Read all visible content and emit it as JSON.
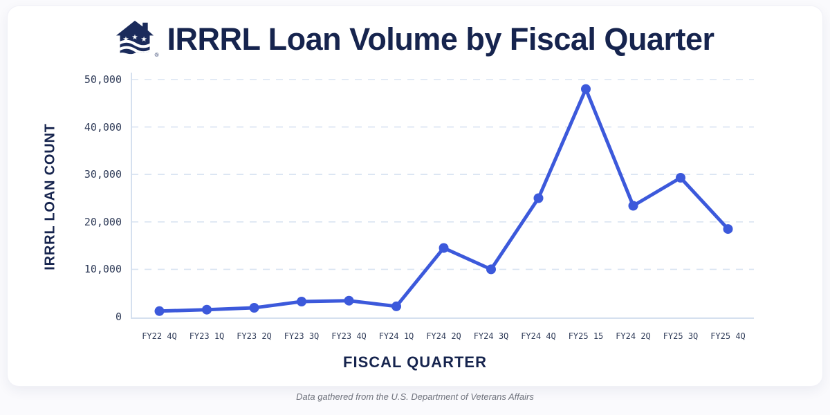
{
  "page": {
    "title": "IRRRL Loan Volume by Fiscal Quarter",
    "registered_mark": "®",
    "footer": "Data gathered from the U.S. Department of Veterans Affairs"
  },
  "colors": {
    "line": "#3C59DB",
    "title_navy": "#16244E",
    "tick_text": "#2F3B58",
    "gridline": "#D9E4F2",
    "axis_line": "#D5E0EF",
    "card_background": "#FFFFFF",
    "page_background": "#FAFAFD",
    "footer_text": "#6E727C",
    "logo_navy": "#1B2B5B"
  },
  "chart_data": {
    "type": "line",
    "title": "IRRRL Loan Volume by Fiscal Quarter",
    "xlabel": "FISCAL QUARTER",
    "ylabel": "IRRRL LOAN COUNT",
    "categories": [
      "FY22 4Q",
      "FY23 1Q",
      "FY23 2Q",
      "FY23 3Q",
      "FY23 4Q",
      "FY24 1Q",
      "FY24 2Q",
      "FY24 3Q",
      "FY24 4Q",
      "FY25 15",
      "FY24 2Q",
      "FY25 3Q",
      "FY25 4Q"
    ],
    "values": [
      1200,
      1500,
      1900,
      3200,
      3400,
      2200,
      14500,
      10000,
      25000,
      48000,
      23400,
      29300,
      18500
    ],
    "ylim": [
      0,
      50000
    ],
    "y_ticks": [
      {
        "value": 0,
        "label": "0"
      },
      {
        "value": 10000,
        "label": "10,000"
      },
      {
        "value": 20000,
        "label": "20,000"
      },
      {
        "value": 30000,
        "label": "30,000"
      },
      {
        "value": 40000,
        "label": "40,000"
      },
      {
        "value": 50000,
        "label": "50,000"
      }
    ],
    "grid": "horizontal-dashed",
    "legend": "none",
    "marker": "circle",
    "line_color": "#3C59DB"
  }
}
